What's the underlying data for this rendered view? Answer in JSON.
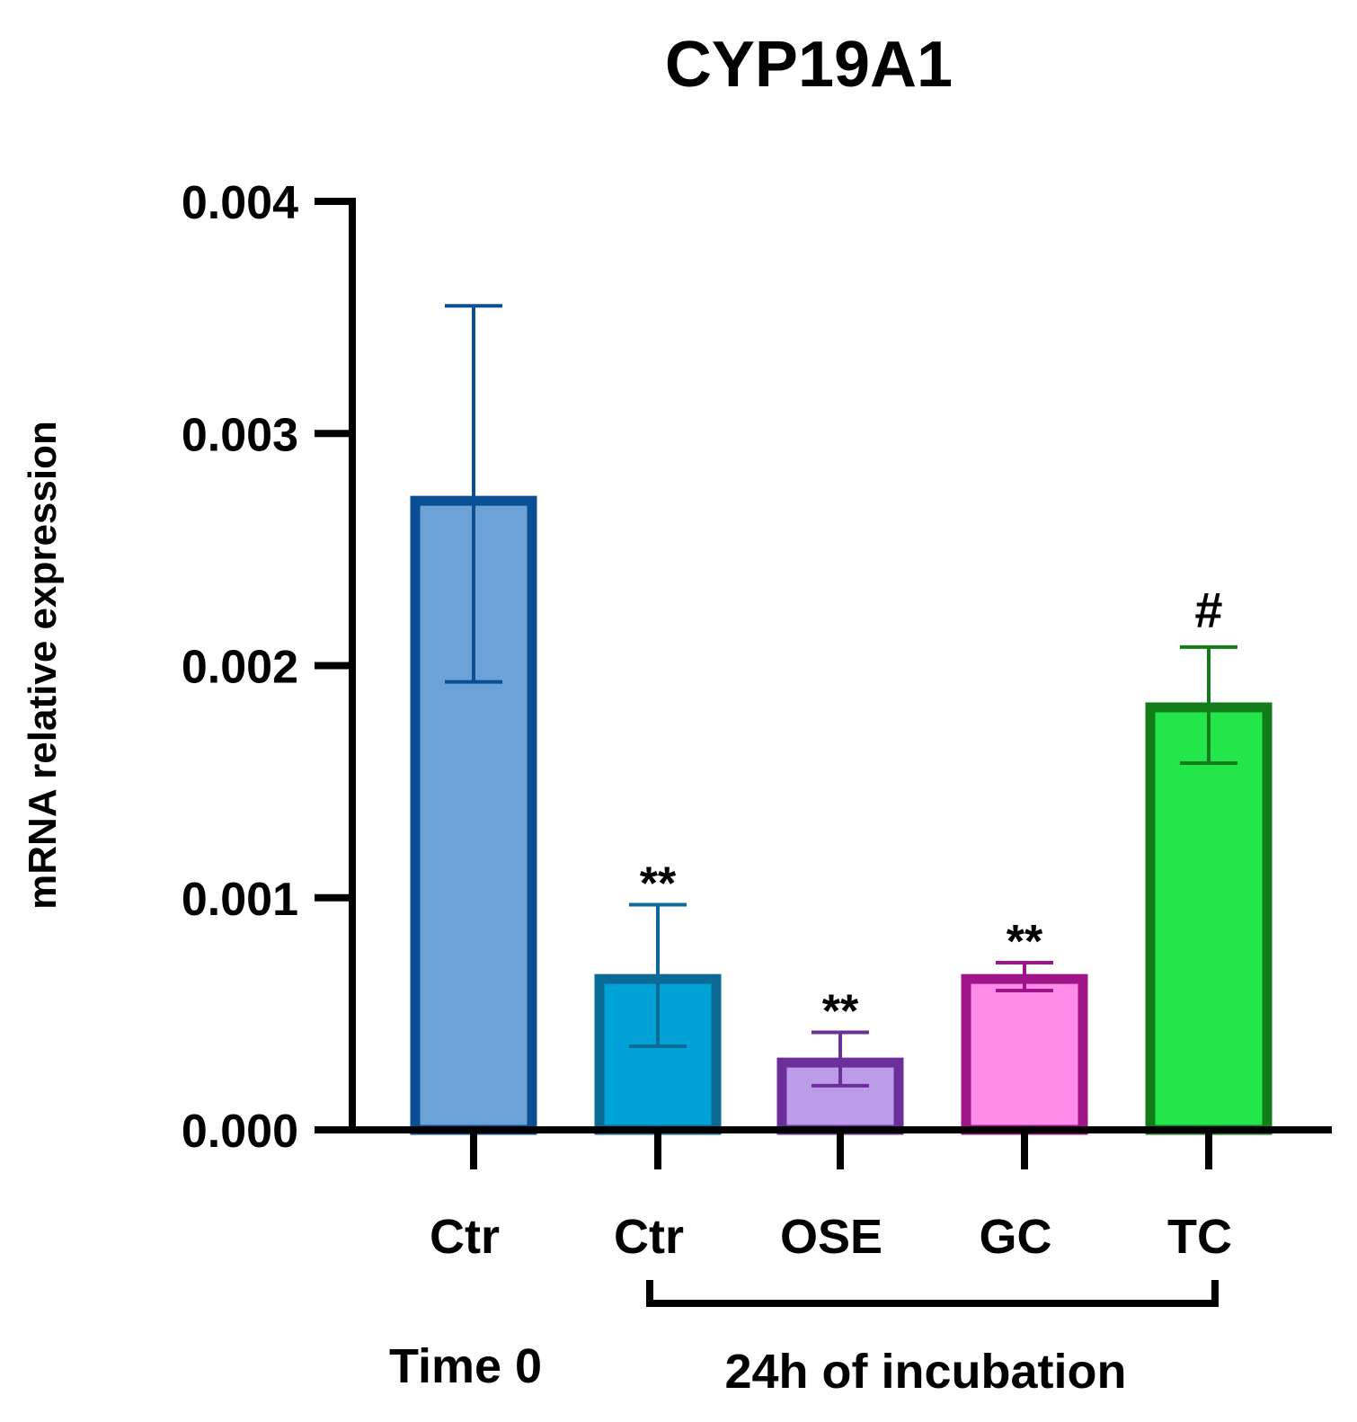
{
  "chart_data": {
    "type": "bar",
    "title": "CYP19A1",
    "xlabel": "",
    "ylabel": "mRNA relative expression",
    "ylim": [
      0,
      0.004
    ],
    "yticks": [
      "0.000",
      "0.001",
      "0.002",
      "0.003",
      "0.004"
    ],
    "ytick_values": [
      0,
      0.001,
      0.002,
      0.003,
      0.004
    ],
    "categories": [
      "Ctr",
      "Ctr",
      "OSE",
      "GC",
      "TC"
    ],
    "values": [
      0.00271,
      0.00065,
      0.00029,
      0.00065,
      0.00182
    ],
    "error_upper": [
      0.00355,
      0.00097,
      0.00042,
      0.00072,
      0.00208
    ],
    "error_lower": [
      0.00193,
      0.00036,
      0.00019,
      0.0006,
      0.00158
    ],
    "annotations": [
      "",
      "**",
      "**",
      "**",
      "#"
    ],
    "fill_colors": [
      "#6ca2d8",
      "#00a2d6",
      "#bc9be8",
      "#fe8ce8",
      "#22e64a"
    ],
    "stroke_colors": [
      "#0a4e94",
      "#0b6a96",
      "#6c2f9a",
      "#a0148a",
      "#127c1a"
    ],
    "groups": [
      {
        "label": "Time 0",
        "category_indices": [
          0
        ]
      },
      {
        "label": "24h of incubation",
        "category_indices": [
          1,
          2,
          3,
          4
        ]
      }
    ]
  }
}
